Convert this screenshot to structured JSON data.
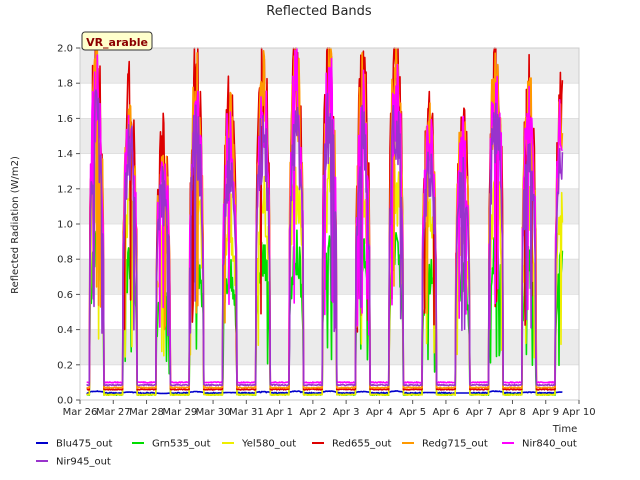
{
  "chart_data": {
    "type": "line",
    "title": "Reflected Bands",
    "xlabel": "Time",
    "ylabel": "Reflected Radiation (W/m2)",
    "badge": "VR_arable",
    "ylim": [
      0.0,
      2.0
    ],
    "yticks": [
      "0.0",
      "0.2",
      "0.4",
      "0.6",
      "0.8",
      "1.0",
      "1.2",
      "1.4",
      "1.6",
      "1.8",
      "2.0"
    ],
    "xticks": [
      "Mar 26",
      "Mar 27",
      "Mar 28",
      "Mar 29",
      "Mar 30",
      "Mar 31",
      "Apr 1",
      "Apr 2",
      "Apr 3",
      "Apr 4",
      "Apr 5",
      "Apr 6",
      "Apr 7",
      "Apr 8",
      "Apr 9",
      "Apr 10"
    ],
    "xlim_days": [
      0,
      15
    ],
    "data_start_day": 0.2,
    "data_end_day": 14.5,
    "daily_peak_factor": [
      1.0,
      0.9,
      0.75,
      0.95,
      0.85,
      0.95,
      1.0,
      1.0,
      0.95,
      1.0,
      0.85,
      0.8,
      1.0,
      0.9
    ],
    "grid": "horizontal bands",
    "legend_position": "bottom",
    "series": [
      {
        "name": "Blu475_out",
        "color": "#0000cc",
        "night": 0.04,
        "peak": 0.05
      },
      {
        "name": "Grn535_out",
        "color": "#00dd00",
        "night": 0.03,
        "peak": 0.85
      },
      {
        "name": "Yel580_out",
        "color": "#eeee00",
        "night": 0.03,
        "peak": 1.2
      },
      {
        "name": "Red655_out",
        "color": "#dd0000",
        "night": 0.06,
        "peak": 1.9
      },
      {
        "name": "Redg715_out",
        "color": "#ff9900",
        "night": 0.07,
        "peak": 1.8
      },
      {
        "name": "Nir840_out",
        "color": "#ff00ff",
        "night": 0.1,
        "peak": 1.75
      },
      {
        "name": "Nir945_out",
        "color": "#9933cc",
        "night": 0.085,
        "peak": 1.55
      }
    ]
  }
}
